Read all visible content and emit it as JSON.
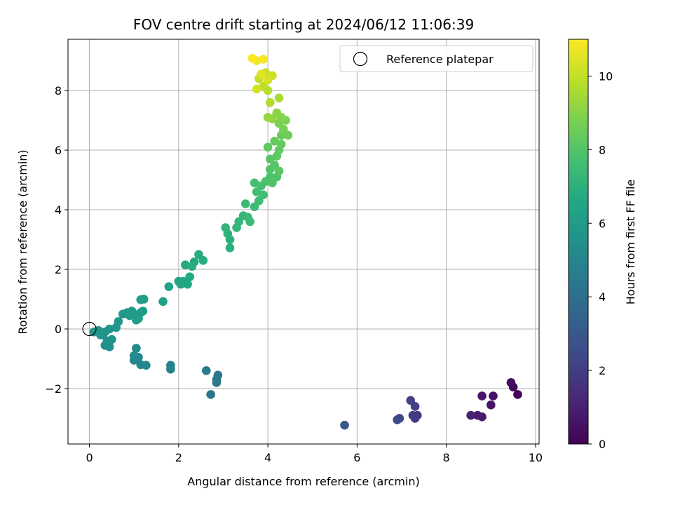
{
  "chart_data": {
    "type": "scatter",
    "title": "FOV centre drift starting at 2024/06/12 11:06:39",
    "xlabel": "Angular distance from reference (arcmin)",
    "ylabel": "Rotation from reference (arcmin)",
    "colorbar_label": "Hours from first FF file",
    "xlim": [
      -0.48,
      10.08
    ],
    "ylim": [
      -3.86,
      9.72
    ],
    "x_ticks": [
      0,
      2,
      4,
      6,
      8,
      10
    ],
    "y_ticks": [
      -2,
      0,
      2,
      4,
      6,
      8
    ],
    "x_tick_labels": [
      "0",
      "2",
      "4",
      "6",
      "8",
      "10"
    ],
    "y_tick_labels": [
      "−2",
      "0",
      "2",
      "4",
      "6",
      "8"
    ],
    "colorbar_range": [
      0,
      11
    ],
    "colorbar_ticks": [
      0,
      2,
      4,
      6,
      8,
      10
    ],
    "colorbar_tick_labels": [
      "0",
      "2",
      "4",
      "6",
      "8",
      "10"
    ],
    "colormap": "viridis",
    "grid": true,
    "legend": {
      "placement": "top-right",
      "entries": [
        "Reference platepar"
      ]
    },
    "reference_point": {
      "x": 0,
      "y": 0
    },
    "points": [
      {
        "x": 9.6,
        "y": -2.2,
        "t": 0.1
      },
      {
        "x": 9.5,
        "y": -1.95,
        "t": 0.2
      },
      {
        "x": 9.45,
        "y": -1.8,
        "t": 0.3
      },
      {
        "x": 9.05,
        "y": -2.25,
        "t": 0.5
      },
      {
        "x": 9.0,
        "y": -2.55,
        "t": 0.6
      },
      {
        "x": 8.8,
        "y": -2.25,
        "t": 0.7
      },
      {
        "x": 8.8,
        "y": -2.95,
        "t": 0.8
      },
      {
        "x": 8.7,
        "y": -2.9,
        "t": 0.9
      },
      {
        "x": 8.55,
        "y": -2.9,
        "t": 1.0
      },
      {
        "x": 7.35,
        "y": -2.9,
        "t": 1.8
      },
      {
        "x": 7.3,
        "y": -3.0,
        "t": 1.9
      },
      {
        "x": 7.25,
        "y": -2.9,
        "t": 2.0
      },
      {
        "x": 7.3,
        "y": -2.6,
        "t": 2.05
      },
      {
        "x": 7.2,
        "y": -2.4,
        "t": 2.1
      },
      {
        "x": 6.95,
        "y": -3.0,
        "t": 2.3
      },
      {
        "x": 6.9,
        "y": -3.05,
        "t": 2.4
      },
      {
        "x": 5.72,
        "y": -3.23,
        "t": 3.0
      },
      {
        "x": 2.72,
        "y": -2.2,
        "t": 4.3
      },
      {
        "x": 2.85,
        "y": -1.8,
        "t": 4.4
      },
      {
        "x": 2.88,
        "y": -1.55,
        "t": 4.45
      },
      {
        "x": 2.85,
        "y": -1.7,
        "t": 4.5
      },
      {
        "x": 2.62,
        "y": -1.4,
        "t": 4.55
      },
      {
        "x": 1.82,
        "y": -1.35,
        "t": 4.8
      },
      {
        "x": 1.82,
        "y": -1.22,
        "t": 4.85
      },
      {
        "x": 1.27,
        "y": -1.22,
        "t": 5.0
      },
      {
        "x": 1.15,
        "y": -1.2,
        "t": 5.05
      },
      {
        "x": 1.1,
        "y": -0.95,
        "t": 5.1
      },
      {
        "x": 1.0,
        "y": -1.05,
        "t": 5.15
      },
      {
        "x": 1.0,
        "y": -0.9,
        "t": 5.2
      },
      {
        "x": 1.05,
        "y": -0.65,
        "t": 5.25
      },
      {
        "x": 0.45,
        "y": -0.6,
        "t": 5.4
      },
      {
        "x": 0.35,
        "y": -0.55,
        "t": 5.45
      },
      {
        "x": 0.4,
        "y": -0.4,
        "t": 5.5
      },
      {
        "x": 0.5,
        "y": -0.35,
        "t": 5.55
      },
      {
        "x": 0.3,
        "y": -0.2,
        "t": 5.6
      },
      {
        "x": 0.35,
        "y": -0.1,
        "t": 5.62
      },
      {
        "x": 0.2,
        "y": -0.05,
        "t": 5.65
      },
      {
        "x": 0.1,
        "y": -0.1,
        "t": 5.68
      },
      {
        "x": 0.25,
        "y": -0.2,
        "t": 5.7
      },
      {
        "x": 0.45,
        "y": 0.0,
        "t": 5.72
      },
      {
        "x": 0.6,
        "y": 0.05,
        "t": 5.75
      },
      {
        "x": 0.65,
        "y": 0.25,
        "t": 5.8
      },
      {
        "x": 0.75,
        "y": 0.5,
        "t": 5.85
      },
      {
        "x": 0.9,
        "y": 0.45,
        "t": 5.88
      },
      {
        "x": 0.95,
        "y": 0.6,
        "t": 5.9
      },
      {
        "x": 1.0,
        "y": 0.5,
        "t": 5.92
      },
      {
        "x": 1.05,
        "y": 0.3,
        "t": 5.94
      },
      {
        "x": 1.1,
        "y": 0.45,
        "t": 5.96
      },
      {
        "x": 1.15,
        "y": 0.55,
        "t": 5.98
      },
      {
        "x": 1.2,
        "y": 0.6,
        "t": 6.0
      },
      {
        "x": 0.85,
        "y": 0.55,
        "t": 6.02
      },
      {
        "x": 1.15,
        "y": 0.98,
        "t": 6.05
      },
      {
        "x": 1.22,
        "y": 1.0,
        "t": 6.08
      },
      {
        "x": 1.1,
        "y": 0.35,
        "t": 6.1
      },
      {
        "x": 1.65,
        "y": 0.92,
        "t": 6.2
      },
      {
        "x": 1.78,
        "y": 1.42,
        "t": 6.3
      },
      {
        "x": 2.0,
        "y": 1.6,
        "t": 6.4
      },
      {
        "x": 2.05,
        "y": 1.5,
        "t": 6.45
      },
      {
        "x": 2.1,
        "y": 1.6,
        "t": 6.5
      },
      {
        "x": 2.2,
        "y": 1.5,
        "t": 6.55
      },
      {
        "x": 2.25,
        "y": 1.75,
        "t": 6.6
      },
      {
        "x": 2.15,
        "y": 2.15,
        "t": 6.65
      },
      {
        "x": 2.35,
        "y": 2.25,
        "t": 6.7
      },
      {
        "x": 2.45,
        "y": 2.5,
        "t": 6.75
      },
      {
        "x": 2.55,
        "y": 2.3,
        "t": 6.8
      },
      {
        "x": 2.3,
        "y": 2.1,
        "t": 6.85
      },
      {
        "x": 3.15,
        "y": 2.72,
        "t": 7.0
      },
      {
        "x": 3.15,
        "y": 3.0,
        "t": 7.05
      },
      {
        "x": 3.1,
        "y": 3.2,
        "t": 7.1
      },
      {
        "x": 3.05,
        "y": 3.4,
        "t": 7.15
      },
      {
        "x": 3.3,
        "y": 3.4,
        "t": 7.2
      },
      {
        "x": 3.35,
        "y": 3.6,
        "t": 7.25
      },
      {
        "x": 3.45,
        "y": 3.8,
        "t": 7.3
      },
      {
        "x": 3.55,
        "y": 3.75,
        "t": 7.35
      },
      {
        "x": 3.6,
        "y": 3.6,
        "t": 7.4
      },
      {
        "x": 3.5,
        "y": 4.2,
        "t": 7.45
      },
      {
        "x": 3.7,
        "y": 4.1,
        "t": 7.5
      },
      {
        "x": 3.8,
        "y": 4.3,
        "t": 7.55
      },
      {
        "x": 3.9,
        "y": 4.5,
        "t": 7.6
      },
      {
        "x": 3.75,
        "y": 4.6,
        "t": 7.65
      },
      {
        "x": 3.85,
        "y": 4.8,
        "t": 7.7
      },
      {
        "x": 3.7,
        "y": 4.9,
        "t": 7.75
      },
      {
        "x": 3.95,
        "y": 4.95,
        "t": 7.8
      },
      {
        "x": 4.05,
        "y": 5.1,
        "t": 7.85
      },
      {
        "x": 4.1,
        "y": 4.9,
        "t": 7.9
      },
      {
        "x": 4.2,
        "y": 5.1,
        "t": 7.95
      },
      {
        "x": 4.05,
        "y": 5.35,
        "t": 8.0
      },
      {
        "x": 4.15,
        "y": 5.5,
        "t": 8.05
      },
      {
        "x": 4.25,
        "y": 5.3,
        "t": 8.1
      },
      {
        "x": 4.05,
        "y": 5.7,
        "t": 8.15
      },
      {
        "x": 4.2,
        "y": 5.8,
        "t": 8.2
      },
      {
        "x": 4.25,
        "y": 6.0,
        "t": 8.25
      },
      {
        "x": 4.0,
        "y": 6.1,
        "t": 8.3
      },
      {
        "x": 4.15,
        "y": 6.3,
        "t": 8.35
      },
      {
        "x": 4.3,
        "y": 6.2,
        "t": 8.4
      },
      {
        "x": 4.3,
        "y": 6.5,
        "t": 8.45
      },
      {
        "x": 4.45,
        "y": 6.5,
        "t": 8.55
      },
      {
        "x": 4.35,
        "y": 6.7,
        "t": 8.65
      },
      {
        "x": 4.25,
        "y": 6.9,
        "t": 8.75
      },
      {
        "x": 4.4,
        "y": 7.0,
        "t": 8.85
      },
      {
        "x": 4.3,
        "y": 7.1,
        "t": 8.95
      },
      {
        "x": 4.2,
        "y": 7.25,
        "t": 9.05
      },
      {
        "x": 4.1,
        "y": 7.05,
        "t": 9.15
      },
      {
        "x": 4.0,
        "y": 7.1,
        "t": 9.25
      },
      {
        "x": 4.25,
        "y": 7.75,
        "t": 9.6
      },
      {
        "x": 4.05,
        "y": 7.6,
        "t": 9.7
      },
      {
        "x": 4.0,
        "y": 8.0,
        "t": 9.8
      },
      {
        "x": 3.9,
        "y": 8.15,
        "t": 9.9
      },
      {
        "x": 3.8,
        "y": 8.4,
        "t": 10.0
      },
      {
        "x": 3.95,
        "y": 8.6,
        "t": 10.1
      },
      {
        "x": 4.1,
        "y": 8.5,
        "t": 10.2
      },
      {
        "x": 3.75,
        "y": 8.05,
        "t": 10.3
      },
      {
        "x": 4.0,
        "y": 8.35,
        "t": 10.35
      },
      {
        "x": 3.85,
        "y": 8.55,
        "t": 10.45
      },
      {
        "x": 3.75,
        "y": 9.0,
        "t": 10.8
      },
      {
        "x": 3.9,
        "y": 9.05,
        "t": 10.9
      },
      {
        "x": 3.65,
        "y": 9.08,
        "t": 11.0
      }
    ]
  }
}
